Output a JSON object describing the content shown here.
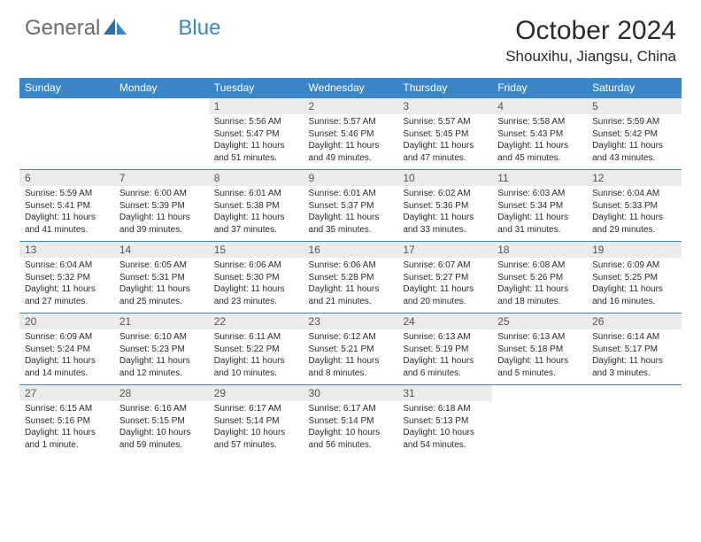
{
  "brand": {
    "text1": "General",
    "text2": "Blue"
  },
  "title": "October 2024",
  "location": "Shouxihu, Jiangsu, China",
  "colors": {
    "header_bg": "#3b86c4",
    "daynum_bg": "#ebebeb",
    "row_border": "#3b86c4",
    "text": "#2a2a2a",
    "logo_gray": "#6b6b6b"
  },
  "weekdays": [
    "Sunday",
    "Monday",
    "Tuesday",
    "Wednesday",
    "Thursday",
    "Friday",
    "Saturday"
  ],
  "weeks": [
    [
      {
        "n": "",
        "sr": "",
        "ss": "",
        "dl": ""
      },
      {
        "n": "",
        "sr": "",
        "ss": "",
        "dl": ""
      },
      {
        "n": "1",
        "sr": "Sunrise: 5:56 AM",
        "ss": "Sunset: 5:47 PM",
        "dl": "Daylight: 11 hours and 51 minutes."
      },
      {
        "n": "2",
        "sr": "Sunrise: 5:57 AM",
        "ss": "Sunset: 5:46 PM",
        "dl": "Daylight: 11 hours and 49 minutes."
      },
      {
        "n": "3",
        "sr": "Sunrise: 5:57 AM",
        "ss": "Sunset: 5:45 PM",
        "dl": "Daylight: 11 hours and 47 minutes."
      },
      {
        "n": "4",
        "sr": "Sunrise: 5:58 AM",
        "ss": "Sunset: 5:43 PM",
        "dl": "Daylight: 11 hours and 45 minutes."
      },
      {
        "n": "5",
        "sr": "Sunrise: 5:59 AM",
        "ss": "Sunset: 5:42 PM",
        "dl": "Daylight: 11 hours and 43 minutes."
      }
    ],
    [
      {
        "n": "6",
        "sr": "Sunrise: 5:59 AM",
        "ss": "Sunset: 5:41 PM",
        "dl": "Daylight: 11 hours and 41 minutes."
      },
      {
        "n": "7",
        "sr": "Sunrise: 6:00 AM",
        "ss": "Sunset: 5:39 PM",
        "dl": "Daylight: 11 hours and 39 minutes."
      },
      {
        "n": "8",
        "sr": "Sunrise: 6:01 AM",
        "ss": "Sunset: 5:38 PM",
        "dl": "Daylight: 11 hours and 37 minutes."
      },
      {
        "n": "9",
        "sr": "Sunrise: 6:01 AM",
        "ss": "Sunset: 5:37 PM",
        "dl": "Daylight: 11 hours and 35 minutes."
      },
      {
        "n": "10",
        "sr": "Sunrise: 6:02 AM",
        "ss": "Sunset: 5:36 PM",
        "dl": "Daylight: 11 hours and 33 minutes."
      },
      {
        "n": "11",
        "sr": "Sunrise: 6:03 AM",
        "ss": "Sunset: 5:34 PM",
        "dl": "Daylight: 11 hours and 31 minutes."
      },
      {
        "n": "12",
        "sr": "Sunrise: 6:04 AM",
        "ss": "Sunset: 5:33 PM",
        "dl": "Daylight: 11 hours and 29 minutes."
      }
    ],
    [
      {
        "n": "13",
        "sr": "Sunrise: 6:04 AM",
        "ss": "Sunset: 5:32 PM",
        "dl": "Daylight: 11 hours and 27 minutes."
      },
      {
        "n": "14",
        "sr": "Sunrise: 6:05 AM",
        "ss": "Sunset: 5:31 PM",
        "dl": "Daylight: 11 hours and 25 minutes."
      },
      {
        "n": "15",
        "sr": "Sunrise: 6:06 AM",
        "ss": "Sunset: 5:30 PM",
        "dl": "Daylight: 11 hours and 23 minutes."
      },
      {
        "n": "16",
        "sr": "Sunrise: 6:06 AM",
        "ss": "Sunset: 5:28 PM",
        "dl": "Daylight: 11 hours and 21 minutes."
      },
      {
        "n": "17",
        "sr": "Sunrise: 6:07 AM",
        "ss": "Sunset: 5:27 PM",
        "dl": "Daylight: 11 hours and 20 minutes."
      },
      {
        "n": "18",
        "sr": "Sunrise: 6:08 AM",
        "ss": "Sunset: 5:26 PM",
        "dl": "Daylight: 11 hours and 18 minutes."
      },
      {
        "n": "19",
        "sr": "Sunrise: 6:09 AM",
        "ss": "Sunset: 5:25 PM",
        "dl": "Daylight: 11 hours and 16 minutes."
      }
    ],
    [
      {
        "n": "20",
        "sr": "Sunrise: 6:09 AM",
        "ss": "Sunset: 5:24 PM",
        "dl": "Daylight: 11 hours and 14 minutes."
      },
      {
        "n": "21",
        "sr": "Sunrise: 6:10 AM",
        "ss": "Sunset: 5:23 PM",
        "dl": "Daylight: 11 hours and 12 minutes."
      },
      {
        "n": "22",
        "sr": "Sunrise: 6:11 AM",
        "ss": "Sunset: 5:22 PM",
        "dl": "Daylight: 11 hours and 10 minutes."
      },
      {
        "n": "23",
        "sr": "Sunrise: 6:12 AM",
        "ss": "Sunset: 5:21 PM",
        "dl": "Daylight: 11 hours and 8 minutes."
      },
      {
        "n": "24",
        "sr": "Sunrise: 6:13 AM",
        "ss": "Sunset: 5:19 PM",
        "dl": "Daylight: 11 hours and 6 minutes."
      },
      {
        "n": "25",
        "sr": "Sunrise: 6:13 AM",
        "ss": "Sunset: 5:18 PM",
        "dl": "Daylight: 11 hours and 5 minutes."
      },
      {
        "n": "26",
        "sr": "Sunrise: 6:14 AM",
        "ss": "Sunset: 5:17 PM",
        "dl": "Daylight: 11 hours and 3 minutes."
      }
    ],
    [
      {
        "n": "27",
        "sr": "Sunrise: 6:15 AM",
        "ss": "Sunset: 5:16 PM",
        "dl": "Daylight: 11 hours and 1 minute."
      },
      {
        "n": "28",
        "sr": "Sunrise: 6:16 AM",
        "ss": "Sunset: 5:15 PM",
        "dl": "Daylight: 10 hours and 59 minutes."
      },
      {
        "n": "29",
        "sr": "Sunrise: 6:17 AM",
        "ss": "Sunset: 5:14 PM",
        "dl": "Daylight: 10 hours and 57 minutes."
      },
      {
        "n": "30",
        "sr": "Sunrise: 6:17 AM",
        "ss": "Sunset: 5:14 PM",
        "dl": "Daylight: 10 hours and 56 minutes."
      },
      {
        "n": "31",
        "sr": "Sunrise: 6:18 AM",
        "ss": "Sunset: 5:13 PM",
        "dl": "Daylight: 10 hours and 54 minutes."
      },
      {
        "n": "",
        "sr": "",
        "ss": "",
        "dl": ""
      },
      {
        "n": "",
        "sr": "",
        "ss": "",
        "dl": ""
      }
    ]
  ]
}
